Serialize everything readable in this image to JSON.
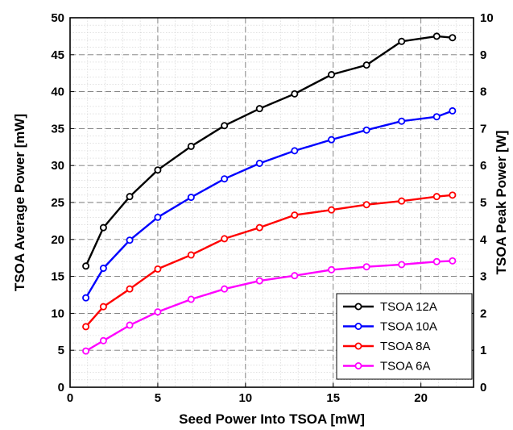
{
  "chart_data": {
    "type": "line",
    "xlabel": "Seed Power Into TSOA [mW]",
    "ylabel": "TSOA Average Power [mW]",
    "y2label": "TSOA Peak Power [W]",
    "xlim": [
      0,
      23
    ],
    "ylim": [
      0,
      50
    ],
    "y2lim": [
      0,
      10
    ],
    "xticks": [
      0,
      5,
      10,
      15,
      20
    ],
    "yticks": [
      0,
      5,
      10,
      15,
      20,
      25,
      30,
      35,
      40,
      45,
      50
    ],
    "y2ticks": [
      0,
      1,
      2,
      3,
      4,
      5,
      6,
      7,
      8,
      9,
      10
    ],
    "grid": true,
    "legend_position": "bottom-right",
    "x": [
      0.9,
      1.9,
      3.4,
      5.0,
      6.9,
      8.8,
      10.8,
      12.8,
      14.9,
      16.9,
      18.9,
      20.9,
      21.8
    ],
    "series": [
      {
        "name": "TSOA 12A",
        "color": "#000000",
        "values": [
          16.4,
          21.6,
          25.8,
          29.4,
          32.6,
          35.4,
          37.7,
          39.7,
          42.3,
          43.6,
          46.8,
          47.5,
          47.3
        ]
      },
      {
        "name": "TSOA 10A",
        "color": "#0000ff",
        "values": [
          12.1,
          16.1,
          19.9,
          23.0,
          25.7,
          28.2,
          30.3,
          32.0,
          33.5,
          34.8,
          36.0,
          36.6,
          37.4
        ]
      },
      {
        "name": "TSOA 8A",
        "color": "#ff0000",
        "values": [
          8.2,
          10.9,
          13.3,
          16.0,
          17.9,
          20.1,
          21.6,
          23.3,
          24.0,
          24.7,
          25.2,
          25.8,
          26.0
        ]
      },
      {
        "name": "TSOA 6A",
        "color": "#ff00ff",
        "values": [
          4.9,
          6.3,
          8.4,
          10.2,
          11.9,
          13.3,
          14.4,
          15.1,
          15.9,
          16.3,
          16.6,
          17.0,
          17.1
        ]
      }
    ]
  }
}
